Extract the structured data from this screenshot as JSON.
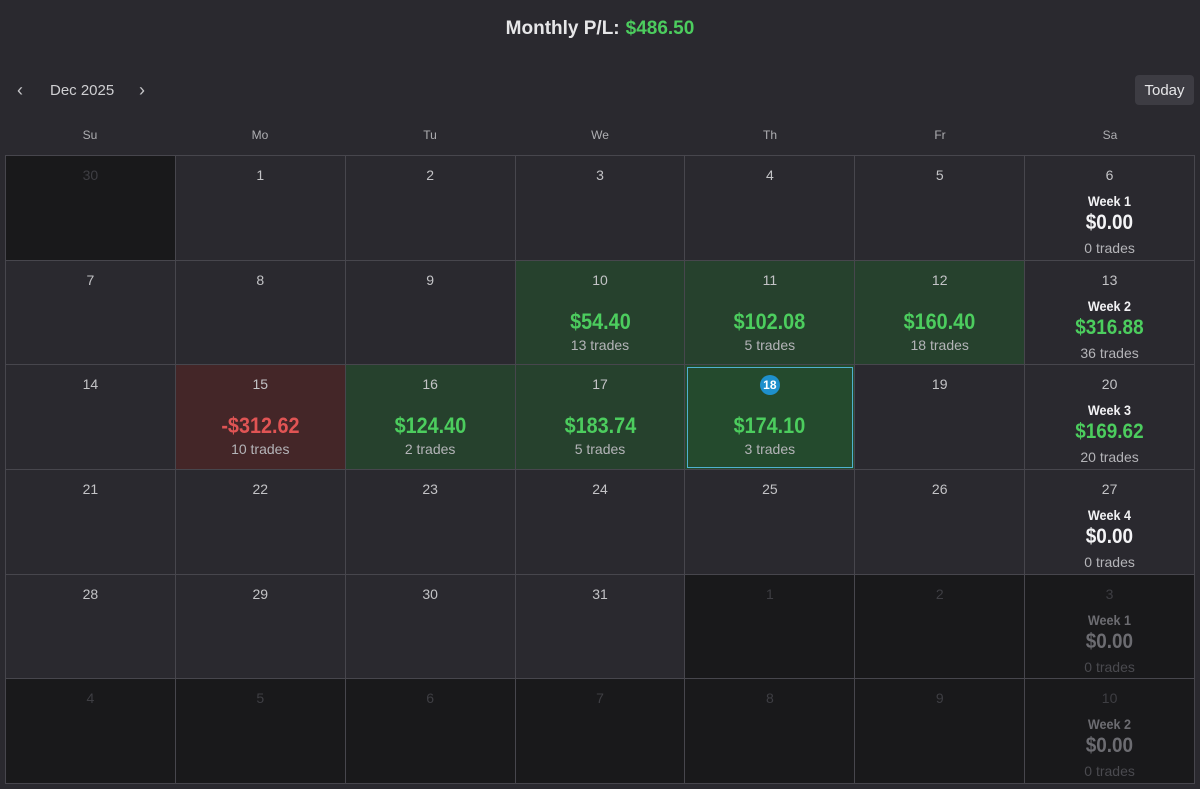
{
  "header": {
    "label": "Monthly P/L:",
    "value": "$486.50"
  },
  "nav": {
    "prev_icon": "‹",
    "month": "Dec 2025",
    "next_icon": "›",
    "today": "Today"
  },
  "weekdays": [
    "Su",
    "Mo",
    "Tu",
    "We",
    "Th",
    "Fr",
    "Sa"
  ],
  "weeks": [
    [
      {
        "day": "30",
        "other": true
      },
      {
        "day": "1"
      },
      {
        "day": "2"
      },
      {
        "day": "3"
      },
      {
        "day": "4"
      },
      {
        "day": "5"
      },
      {
        "day": "6",
        "week": {
          "label": "Week 1",
          "pnl": "$0.00",
          "trades": "0 trades"
        }
      }
    ],
    [
      {
        "day": "7"
      },
      {
        "day": "8"
      },
      {
        "day": "9"
      },
      {
        "day": "10",
        "pnl": "$54.40",
        "trades": "13 trades",
        "status": "pos"
      },
      {
        "day": "11",
        "pnl": "$102.08",
        "trades": "5 trades",
        "status": "pos"
      },
      {
        "day": "12",
        "pnl": "$160.40",
        "trades": "18 trades",
        "status": "pos"
      },
      {
        "day": "13",
        "week": {
          "label": "Week 2",
          "pnl": "$316.88",
          "trades": "36 trades",
          "positive": true
        }
      }
    ],
    [
      {
        "day": "14"
      },
      {
        "day": "15",
        "pnl": "-$312.62",
        "trades": "10 trades",
        "status": "neg"
      },
      {
        "day": "16",
        "pnl": "$124.40",
        "trades": "2 trades",
        "status": "pos"
      },
      {
        "day": "17",
        "pnl": "$183.74",
        "trades": "5 trades",
        "status": "pos"
      },
      {
        "day": "18",
        "pnl": "$174.10",
        "trades": "3 trades",
        "status": "pos",
        "today": true
      },
      {
        "day": "19"
      },
      {
        "day": "20",
        "week": {
          "label": "Week 3",
          "pnl": "$169.62",
          "trades": "20 trades",
          "positive": true
        }
      }
    ],
    [
      {
        "day": "21"
      },
      {
        "day": "22"
      },
      {
        "day": "23"
      },
      {
        "day": "24"
      },
      {
        "day": "25"
      },
      {
        "day": "26"
      },
      {
        "day": "27",
        "week": {
          "label": "Week 4",
          "pnl": "$0.00",
          "trades": "0 trades"
        }
      }
    ],
    [
      {
        "day": "28"
      },
      {
        "day": "29"
      },
      {
        "day": "30"
      },
      {
        "day": "31"
      },
      {
        "day": "1",
        "other": true
      },
      {
        "day": "2",
        "other": true
      },
      {
        "day": "3",
        "other": true,
        "week": {
          "label": "Week 1",
          "pnl": "$0.00",
          "trades": "0 trades"
        }
      }
    ],
    [
      {
        "day": "4",
        "other": true
      },
      {
        "day": "5",
        "other": true
      },
      {
        "day": "6",
        "other": true
      },
      {
        "day": "7",
        "other": true
      },
      {
        "day": "8",
        "other": true
      },
      {
        "day": "9",
        "other": true
      },
      {
        "day": "10",
        "other": true,
        "week": {
          "label": "Week 2",
          "pnl": "$0.00",
          "trades": "0 trades"
        }
      }
    ]
  ]
}
